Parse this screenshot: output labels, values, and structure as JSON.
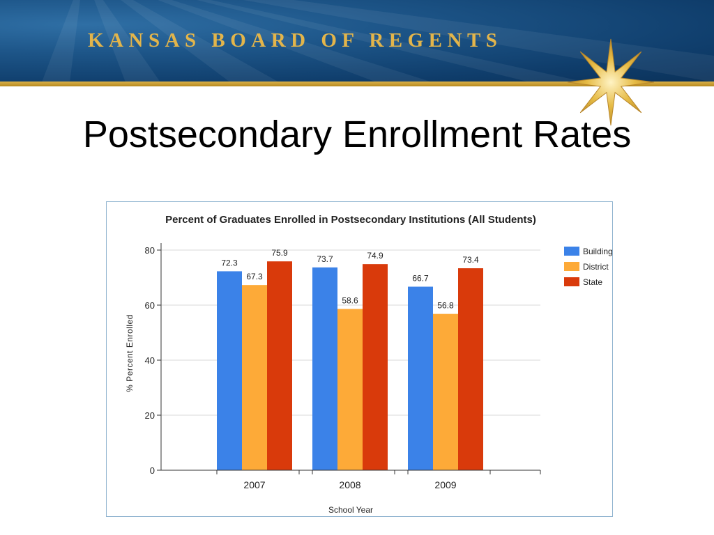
{
  "header": {
    "org_name": "KANSAS BOARD OF REGENTS",
    "logo": "gold-star-icon"
  },
  "slide": {
    "title": "Postsecondary Enrollment Rates"
  },
  "colors": {
    "banner": "#1b4f80",
    "gold": "#e3b54b",
    "building": "#3b82e8",
    "district": "#fdaa38",
    "state": "#d93a0b"
  },
  "chart_data": {
    "type": "bar",
    "title": "Percent of Graduates Enrolled in Postsecondary Institutions (All Students)",
    "xlabel": "School Year",
    "ylabel": "% Percent Enrolled",
    "categories": [
      "2007",
      "2008",
      "2009"
    ],
    "series": [
      {
        "name": "Building",
        "color": "#3b82e8",
        "values": [
          72.3,
          73.7,
          66.7
        ]
      },
      {
        "name": "District",
        "color": "#fdaa38",
        "values": [
          67.3,
          58.6,
          56.8
        ]
      },
      {
        "name": "State",
        "color": "#d93a0b",
        "values": [
          75.9,
          74.9,
          73.4
        ]
      }
    ],
    "ylim": [
      0,
      80
    ],
    "yticks": [
      0,
      20,
      40,
      60,
      80
    ],
    "grid": true,
    "legend_position": "right"
  }
}
